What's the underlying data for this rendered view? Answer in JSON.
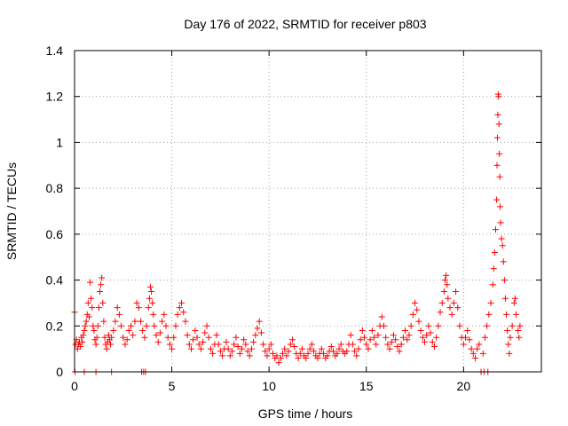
{
  "chart_data": {
    "type": "scatter",
    "title": "Day 176 of 2022, SRMTID for receiver p803",
    "xlabel": "GPS time / hours",
    "ylabel": "SRMTID / TECUs",
    "xlim": [
      0,
      24
    ],
    "ylim": [
      0,
      1.4
    ],
    "x_ticks": [
      0,
      5,
      10,
      15,
      20
    ],
    "y_ticks": [
      0,
      0.2,
      0.4,
      0.6,
      0.8,
      1,
      1.2,
      1.4
    ],
    "x_tick_labels": [
      "0",
      "5",
      "10",
      "15",
      "20"
    ],
    "y_tick_labels": [
      "0",
      "0.2",
      "0.4",
      "0.6",
      "0.8",
      "1",
      "1.2",
      "1.4"
    ],
    "grid": true,
    "marker": "+",
    "series": [
      {
        "name": "SRMTID",
        "color": "#ff0000",
        "points": [
          [
            0.0,
            0.26
          ],
          [
            0.02,
            0.0
          ],
          [
            0.05,
            0.12
          ],
          [
            0.1,
            0.14
          ],
          [
            0.15,
            0.1
          ],
          [
            0.2,
            0.12
          ],
          [
            0.25,
            0.13
          ],
          [
            0.3,
            0.11
          ],
          [
            0.35,
            0.15
          ],
          [
            0.4,
            0.13
          ],
          [
            0.45,
            0.16
          ],
          [
            0.5,
            0.0
          ],
          [
            0.5,
            0.18
          ],
          [
            0.55,
            0.2
          ],
          [
            0.6,
            0.22
          ],
          [
            0.65,
            0.25
          ],
          [
            0.7,
            0.3
          ],
          [
            0.75,
            0.24
          ],
          [
            0.8,
            0.39
          ],
          [
            0.85,
            0.32
          ],
          [
            0.9,
            0.28
          ],
          [
            0.95,
            0.2
          ],
          [
            1.0,
            0.18
          ],
          [
            1.05,
            0.14
          ],
          [
            1.1,
            0.12
          ],
          [
            1.1,
            0.0
          ],
          [
            1.15,
            0.15
          ],
          [
            1.2,
            0.2
          ],
          [
            1.25,
            0.28
          ],
          [
            1.3,
            0.35
          ],
          [
            1.35,
            0.38
          ],
          [
            1.4,
            0.41
          ],
          [
            1.45,
            0.3
          ],
          [
            1.5,
            0.22
          ],
          [
            1.55,
            0.15
          ],
          [
            1.6,
            0.12
          ],
          [
            1.65,
            0.1
          ],
          [
            1.7,
            0.13
          ],
          [
            1.75,
            0.16
          ],
          [
            1.8,
            0.14
          ],
          [
            1.85,
            0.12
          ],
          [
            1.9,
            0.0
          ],
          [
            1.9,
            0.15
          ],
          [
            2.0,
            0.18
          ],
          [
            2.1,
            0.22
          ],
          [
            2.2,
            0.28
          ],
          [
            2.3,
            0.25
          ],
          [
            2.4,
            0.2
          ],
          [
            2.5,
            0.15
          ],
          [
            2.6,
            0.12
          ],
          [
            2.7,
            0.14
          ],
          [
            2.8,
            0.18
          ],
          [
            2.9,
            0.2
          ],
          [
            3.0,
            0.16
          ],
          [
            3.1,
            0.22
          ],
          [
            3.2,
            0.3
          ],
          [
            3.3,
            0.28
          ],
          [
            3.4,
            0.22
          ],
          [
            3.45,
            0.0
          ],
          [
            3.5,
            0.18
          ],
          [
            3.55,
            0.0
          ],
          [
            3.6,
            0.15
          ],
          [
            3.65,
            0.0
          ],
          [
            3.7,
            0.2
          ],
          [
            3.8,
            0.28
          ],
          [
            3.85,
            0.32
          ],
          [
            3.9,
            0.37
          ],
          [
            3.95,
            0.35
          ],
          [
            4.0,
            0.3
          ],
          [
            4.05,
            0.25
          ],
          [
            4.1,
            0.2
          ],
          [
            4.2,
            0.16
          ],
          [
            4.3,
            0.13
          ],
          [
            4.4,
            0.17
          ],
          [
            4.5,
            0.22
          ],
          [
            4.6,
            0.25
          ],
          [
            4.7,
            0.2
          ],
          [
            4.8,
            0.15
          ],
          [
            4.9,
            0.12
          ],
          [
            5.0,
            0.1
          ],
          [
            5.1,
            0.15
          ],
          [
            5.2,
            0.2
          ],
          [
            5.3,
            0.25
          ],
          [
            5.4,
            0.28
          ],
          [
            5.5,
            0.3
          ],
          [
            5.6,
            0.26
          ],
          [
            5.7,
            0.22
          ],
          [
            5.8,
            0.16
          ],
          [
            5.9,
            0.12
          ],
          [
            6.0,
            0.1
          ],
          [
            6.1,
            0.14
          ],
          [
            6.2,
            0.18
          ],
          [
            6.3,
            0.15
          ],
          [
            6.4,
            0.12
          ],
          [
            6.5,
            0.1
          ],
          [
            6.6,
            0.13
          ],
          [
            6.7,
            0.17
          ],
          [
            6.8,
            0.2
          ],
          [
            6.9,
            0.15
          ],
          [
            7.0,
            0.1
          ],
          [
            7.1,
            0.08
          ],
          [
            7.2,
            0.12
          ],
          [
            7.3,
            0.16
          ],
          [
            7.4,
            0.12
          ],
          [
            7.5,
            0.09
          ],
          [
            7.6,
            0.07
          ],
          [
            7.7,
            0.1
          ],
          [
            7.8,
            0.13
          ],
          [
            7.9,
            0.1
          ],
          [
            8.0,
            0.07
          ],
          [
            8.1,
            0.09
          ],
          [
            8.2,
            0.12
          ],
          [
            8.3,
            0.15
          ],
          [
            8.4,
            0.11
          ],
          [
            8.5,
            0.08
          ],
          [
            8.6,
            0.1
          ],
          [
            8.7,
            0.14
          ],
          [
            8.8,
            0.12
          ],
          [
            8.9,
            0.09
          ],
          [
            9.0,
            0.07
          ],
          [
            9.1,
            0.1
          ],
          [
            9.2,
            0.13
          ],
          [
            9.3,
            0.16
          ],
          [
            9.4,
            0.19
          ],
          [
            9.5,
            0.22
          ],
          [
            9.6,
            0.17
          ],
          [
            9.7,
            0.12
          ],
          [
            9.8,
            0.09
          ],
          [
            9.9,
            0.07
          ],
          [
            10.0,
            0.1
          ],
          [
            10.1,
            0.12
          ],
          [
            10.2,
            0.08
          ],
          [
            10.3,
            0.06
          ],
          [
            10.4,
            0.07
          ],
          [
            10.5,
            0.04
          ],
          [
            10.6,
            0.06
          ],
          [
            10.7,
            0.08
          ],
          [
            10.8,
            0.1
          ],
          [
            10.9,
            0.07
          ],
          [
            11.0,
            0.09
          ],
          [
            11.1,
            0.12
          ],
          [
            11.2,
            0.14
          ],
          [
            11.3,
            0.11
          ],
          [
            11.4,
            0.08
          ],
          [
            11.5,
            0.06
          ],
          [
            11.6,
            0.08
          ],
          [
            11.7,
            0.1
          ],
          [
            11.8,
            0.07
          ],
          [
            11.9,
            0.06
          ],
          [
            12.0,
            0.08
          ],
          [
            12.1,
            0.1
          ],
          [
            12.2,
            0.12
          ],
          [
            12.3,
            0.09
          ],
          [
            12.4,
            0.07
          ],
          [
            12.5,
            0.06
          ],
          [
            12.6,
            0.08
          ],
          [
            12.7,
            0.1
          ],
          [
            12.8,
            0.08
          ],
          [
            12.9,
            0.06
          ],
          [
            13.0,
            0.07
          ],
          [
            13.1,
            0.09
          ],
          [
            13.2,
            0.11
          ],
          [
            13.3,
            0.09
          ],
          [
            13.4,
            0.07
          ],
          [
            13.5,
            0.08
          ],
          [
            13.6,
            0.1
          ],
          [
            13.7,
            0.12
          ],
          [
            13.8,
            0.09
          ],
          [
            13.9,
            0.08
          ],
          [
            14.0,
            0.09
          ],
          [
            14.1,
            0.12
          ],
          [
            14.2,
            0.16
          ],
          [
            14.3,
            0.12
          ],
          [
            14.4,
            0.09
          ],
          [
            14.5,
            0.07
          ],
          [
            14.6,
            0.1
          ],
          [
            14.7,
            0.14
          ],
          [
            14.8,
            0.18
          ],
          [
            14.9,
            0.15
          ],
          [
            15.0,
            0.12
          ],
          [
            15.1,
            0.1
          ],
          [
            15.2,
            0.14
          ],
          [
            15.3,
            0.18
          ],
          [
            15.4,
            0.15
          ],
          [
            15.5,
            0.12
          ],
          [
            15.6,
            0.16
          ],
          [
            15.7,
            0.2
          ],
          [
            15.8,
            0.24
          ],
          [
            15.9,
            0.2
          ],
          [
            16.0,
            0.15
          ],
          [
            16.1,
            0.12
          ],
          [
            16.2,
            0.1
          ],
          [
            16.3,
            0.13
          ],
          [
            16.4,
            0.16
          ],
          [
            16.5,
            0.14
          ],
          [
            16.6,
            0.11
          ],
          [
            16.7,
            0.09
          ],
          [
            16.8,
            0.12
          ],
          [
            16.9,
            0.15
          ],
          [
            17.0,
            0.18
          ],
          [
            17.1,
            0.14
          ],
          [
            17.2,
            0.16
          ],
          [
            17.3,
            0.2
          ],
          [
            17.4,
            0.25
          ],
          [
            17.5,
            0.3
          ],
          [
            17.6,
            0.27
          ],
          [
            17.7,
            0.22
          ],
          [
            17.8,
            0.18
          ],
          [
            17.9,
            0.15
          ],
          [
            18.0,
            0.13
          ],
          [
            18.1,
            0.16
          ],
          [
            18.2,
            0.2
          ],
          [
            18.3,
            0.17
          ],
          [
            18.4,
            0.13
          ],
          [
            18.5,
            0.11
          ],
          [
            18.6,
            0.15
          ],
          [
            18.7,
            0.2
          ],
          [
            18.8,
            0.26
          ],
          [
            18.9,
            0.3
          ],
          [
            19.0,
            0.35
          ],
          [
            19.05,
            0.4
          ],
          [
            19.1,
            0.42
          ],
          [
            19.15,
            0.38
          ],
          [
            19.2,
            0.32
          ],
          [
            19.3,
            0.28
          ],
          [
            19.4,
            0.25
          ],
          [
            19.5,
            0.3
          ],
          [
            19.6,
            0.35
          ],
          [
            19.7,
            0.28
          ],
          [
            19.8,
            0.2
          ],
          [
            19.9,
            0.15
          ],
          [
            20.0,
            0.12
          ],
          [
            20.1,
            0.15
          ],
          [
            20.2,
            0.18
          ],
          [
            20.3,
            0.14
          ],
          [
            20.4,
            0.1
          ],
          [
            20.5,
            0.08
          ],
          [
            20.6,
            0.06
          ],
          [
            20.7,
            0.1
          ],
          [
            20.8,
            0.12
          ],
          [
            20.9,
            0.0
          ],
          [
            21.0,
            0.08
          ],
          [
            21.05,
            0.0
          ],
          [
            21.1,
            0.15
          ],
          [
            21.2,
            0.2
          ],
          [
            21.25,
            0.0
          ],
          [
            21.3,
            0.25
          ],
          [
            21.4,
            0.3
          ],
          [
            21.5,
            0.38
          ],
          [
            21.55,
            0.45
          ],
          [
            21.6,
            0.52
          ],
          [
            21.65,
            0.62
          ],
          [
            21.7,
            0.75
          ],
          [
            21.72,
            0.9
          ],
          [
            21.74,
            1.02
          ],
          [
            21.76,
            1.12
          ],
          [
            21.78,
            1.21
          ],
          [
            21.8,
            1.2
          ],
          [
            21.82,
            1.08
          ],
          [
            21.84,
            0.95
          ],
          [
            21.86,
            0.85
          ],
          [
            21.88,
            0.72
          ],
          [
            21.9,
            0.65
          ],
          [
            21.95,
            0.58
          ],
          [
            22.0,
            0.55
          ],
          [
            22.05,
            0.48
          ],
          [
            22.1,
            0.4
          ],
          [
            22.15,
            0.32
          ],
          [
            22.2,
            0.25
          ],
          [
            22.25,
            0.18
          ],
          [
            22.3,
            0.12
          ],
          [
            22.35,
            0.08
          ],
          [
            22.4,
            0.15
          ],
          [
            22.5,
            0.2
          ],
          [
            22.6,
            0.3
          ],
          [
            22.65,
            0.32
          ],
          [
            22.7,
            0.25
          ],
          [
            22.8,
            0.18
          ],
          [
            22.85,
            0.15
          ],
          [
            22.9,
            0.2
          ]
        ]
      }
    ]
  }
}
